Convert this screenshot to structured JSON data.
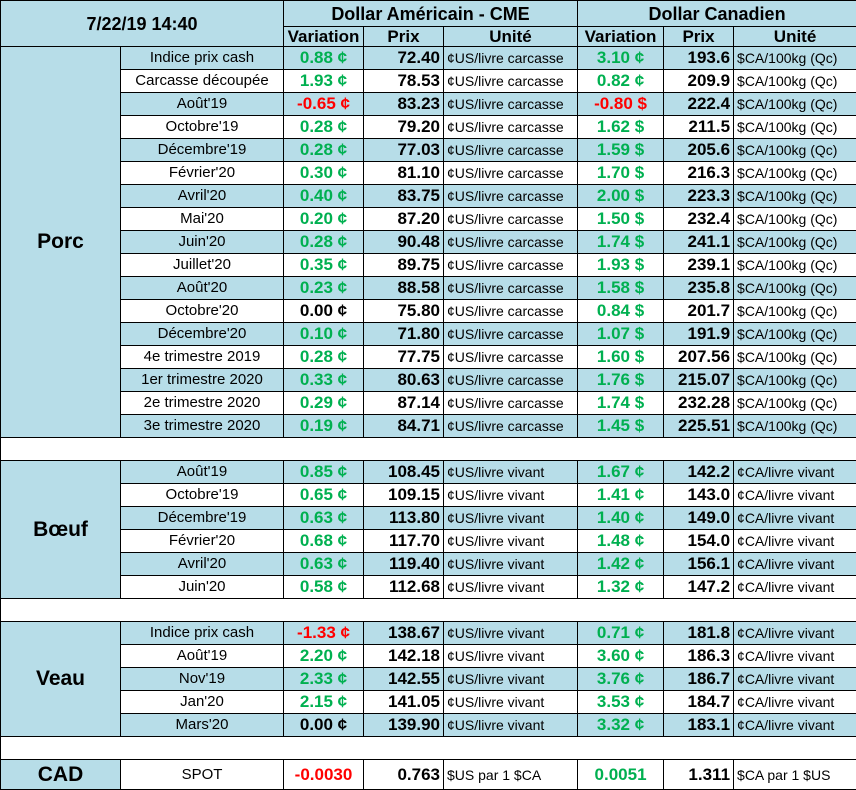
{
  "header": {
    "timestamp": "7/22/19 14:40",
    "us_title": "Dollar Américain - CME",
    "ca_title": "Dollar Canadien",
    "columns": [
      "Variation",
      "Prix",
      "Unité",
      "Variation",
      "Prix",
      "Unité"
    ]
  },
  "groups": [
    {
      "label": "Porc",
      "rows": [
        [
          "Indice prix cash",
          "0.88 ¢",
          "72.40",
          "¢US/livre carcasse",
          "3.10 ¢",
          "193.6",
          "$CA/100kg (Qc)"
        ],
        [
          "Carcasse découpée",
          "1.93 ¢",
          "78.53",
          "¢US/livre carcasse",
          "0.82 ¢",
          "209.9",
          "$CA/100kg (Qc)"
        ],
        [
          "Août'19",
          "-0.65 ¢",
          "83.23",
          "¢US/livre carcasse",
          "-0.80 $",
          "222.4",
          "$CA/100kg (Qc)"
        ],
        [
          "Octobre'19",
          "0.28 ¢",
          "79.20",
          "¢US/livre carcasse",
          "1.62 $",
          "211.5",
          "$CA/100kg (Qc)"
        ],
        [
          "Décembre'19",
          "0.28 ¢",
          "77.03",
          "¢US/livre carcasse",
          "1.59 $",
          "205.6",
          "$CA/100kg (Qc)"
        ],
        [
          "Février'20",
          "0.30 ¢",
          "81.10",
          "¢US/livre carcasse",
          "1.70 $",
          "216.3",
          "$CA/100kg (Qc)"
        ],
        [
          "Avril'20",
          "0.40 ¢",
          "83.75",
          "¢US/livre carcasse",
          "2.00 $",
          "223.3",
          "$CA/100kg (Qc)"
        ],
        [
          "Mai'20",
          "0.20 ¢",
          "87.20",
          "¢US/livre carcasse",
          "1.50 $",
          "232.4",
          "$CA/100kg (Qc)"
        ],
        [
          "Juin'20",
          "0.28 ¢",
          "90.48",
          "¢US/livre carcasse",
          "1.74 $",
          "241.1",
          "$CA/100kg (Qc)"
        ],
        [
          "Juillet'20",
          "0.35 ¢",
          "89.75",
          "¢US/livre carcasse",
          "1.93 $",
          "239.1",
          "$CA/100kg (Qc)"
        ],
        [
          "Août'20",
          "0.23 ¢",
          "88.58",
          "¢US/livre carcasse",
          "1.58 $",
          "235.8",
          "$CA/100kg (Qc)"
        ],
        [
          "Octobre'20",
          "0.00 ¢",
          "75.80",
          "¢US/livre carcasse",
          "0.84 $",
          "201.7",
          "$CA/100kg (Qc)"
        ],
        [
          "Décembre'20",
          "0.10 ¢",
          "71.80",
          "¢US/livre carcasse",
          "1.07 $",
          "191.9",
          "$CA/100kg (Qc)"
        ],
        [
          "4e trimestre 2019",
          "0.28 ¢",
          "77.75",
          "¢US/livre carcasse",
          "1.60 $",
          "207.56",
          "$CA/100kg (Qc)"
        ],
        [
          "1er trimestre 2020",
          "0.33 ¢",
          "80.63",
          "¢US/livre carcasse",
          "1.76 $",
          "215.07",
          "$CA/100kg (Qc)"
        ],
        [
          "2e trimestre 2020",
          "0.29 ¢",
          "87.14",
          "¢US/livre carcasse",
          "1.74 $",
          "232.28",
          "$CA/100kg (Qc)"
        ],
        [
          "3e trimestre 2020",
          "0.19 ¢",
          "84.71",
          "¢US/livre carcasse",
          "1.45 $",
          "225.51",
          "$CA/100kg (Qc)"
        ]
      ]
    },
    {
      "label": "Bœuf",
      "rows": [
        [
          "Août'19",
          "0.85 ¢",
          "108.45",
          "¢US/livre vivant",
          "1.67 ¢",
          "142.2",
          "¢CA/livre vivant"
        ],
        [
          "Octobre'19",
          "0.65 ¢",
          "109.15",
          "¢US/livre vivant",
          "1.41 ¢",
          "143.0",
          "¢CA/livre vivant"
        ],
        [
          "Décembre'19",
          "0.63 ¢",
          "113.80",
          "¢US/livre vivant",
          "1.40 ¢",
          "149.0",
          "¢CA/livre vivant"
        ],
        [
          "Février'20",
          "0.68 ¢",
          "117.70",
          "¢US/livre vivant",
          "1.48 ¢",
          "154.0",
          "¢CA/livre vivant"
        ],
        [
          "Avril'20",
          "0.63 ¢",
          "119.40",
          "¢US/livre vivant",
          "1.42 ¢",
          "156.1",
          "¢CA/livre vivant"
        ],
        [
          "Juin'20",
          "0.58 ¢",
          "112.68",
          "¢US/livre vivant",
          "1.32 ¢",
          "147.2",
          "¢CA/livre vivant"
        ]
      ]
    },
    {
      "label": "Veau",
      "rows": [
        [
          "Indice prix cash",
          "-1.33 ¢",
          "138.67",
          "¢US/livre vivant",
          "0.71 ¢",
          "181.8",
          "¢CA/livre vivant"
        ],
        [
          "Août'19",
          "2.20 ¢",
          "142.18",
          "¢US/livre vivant",
          "3.60 ¢",
          "186.3",
          "¢CA/livre vivant"
        ],
        [
          "Nov'19",
          "2.33 ¢",
          "142.55",
          "¢US/livre vivant",
          "3.76 ¢",
          "186.7",
          "¢CA/livre vivant"
        ],
        [
          "Jan'20",
          "2.15 ¢",
          "141.05",
          "¢US/livre vivant",
          "3.53 ¢",
          "184.7",
          "¢CA/livre vivant"
        ],
        [
          "Mars'20",
          "0.00 ¢",
          "139.90",
          "¢US/livre vivant",
          "3.32 ¢",
          "183.1",
          "¢CA/livre vivant"
        ]
      ]
    },
    {
      "label": "CAD",
      "rows": [
        [
          "SPOT",
          "-0.0030",
          "0.763",
          "$US par 1 $CA",
          "0.0051",
          "1.311",
          "$CA par 1 $US"
        ]
      ]
    }
  ]
}
